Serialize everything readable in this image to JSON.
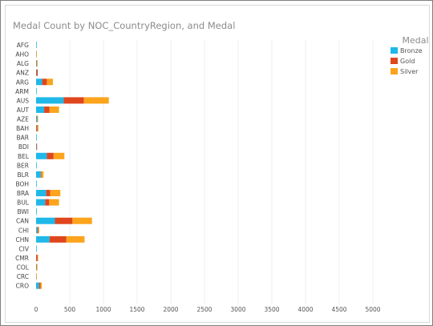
{
  "chart_data": {
    "type": "bar",
    "orientation": "horizontal",
    "stacked": true,
    "title": "Medal Count by NOC_CountryRegion, and Medal",
    "legend": {
      "title": "Medal",
      "placement": "top-right"
    },
    "categories": [
      "AFG",
      "AHO",
      "ALG",
      "ANZ",
      "ARG",
      "ARM",
      "AUS",
      "AUT",
      "AZE",
      "BAH",
      "BAR",
      "BDI",
      "BEL",
      "BER",
      "BLR",
      "BOH",
      "BRA",
      "BUL",
      "BWI",
      "CAN",
      "CHI",
      "CHN",
      "CIV",
      "CMR",
      "COL",
      "CRC",
      "CRO"
    ],
    "series": [
      {
        "name": "Bronze",
        "color": "#1fb8e8",
        "values": [
          5,
          2,
          8,
          5,
          90,
          5,
          410,
          120,
          15,
          5,
          5,
          5,
          160,
          2,
          70,
          2,
          150,
          135,
          2,
          280,
          20,
          200,
          2,
          2,
          5,
          2,
          45
        ]
      },
      {
        "name": "Gold",
        "color": "#e0461e",
        "values": [
          0,
          0,
          5,
          20,
          70,
          0,
          300,
          80,
          5,
          15,
          0,
          2,
          100,
          0,
          10,
          0,
          60,
          60,
          0,
          260,
          15,
          250,
          0,
          20,
          5,
          0,
          20
        ]
      },
      {
        "name": "Silver",
        "color": "#fba41c",
        "values": [
          0,
          2,
          5,
          0,
          90,
          0,
          370,
          140,
          5,
          15,
          0,
          0,
          160,
          0,
          30,
          0,
          150,
          145,
          0,
          290,
          10,
          270,
          0,
          5,
          10,
          3,
          20
        ]
      }
    ],
    "xlim": [
      0,
      5000
    ],
    "xticks": [
      "0",
      "500",
      "1000",
      "1500",
      "2000",
      "2500",
      "3000",
      "3500",
      "4000",
      "4500",
      "5000"
    ],
    "grid": true
  }
}
